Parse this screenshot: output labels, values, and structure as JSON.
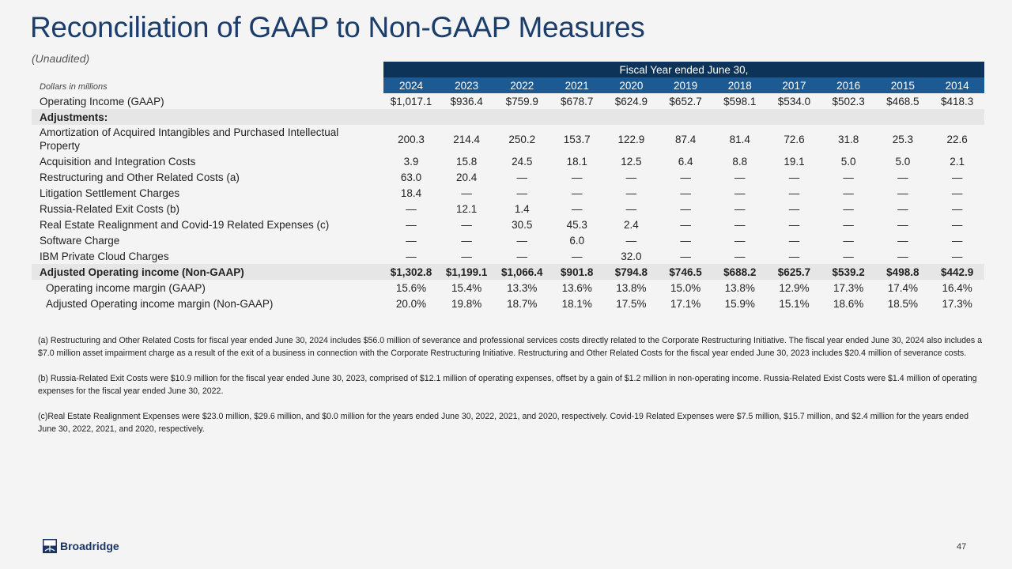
{
  "title": "Reconciliation of GAAP to Non-GAAP Measures",
  "subtitle": "(Unaudited)",
  "units_label": "Dollars in millions",
  "header_band": "Fiscal Year ended June 30,",
  "years": [
    "2024",
    "2023",
    "2022",
    "2021",
    "2020",
    "2019",
    "2018",
    "2017",
    "2016",
    "2015",
    "2014"
  ],
  "rows": [
    {
      "label": "Operating Income (GAAP)",
      "style": "",
      "values": [
        "$1,017.1",
        "$936.4",
        "$759.9",
        "$678.7",
        "$624.9",
        "$652.7",
        "$598.1",
        "$534.0",
        "$502.3",
        "$468.5",
        "$418.3"
      ]
    },
    {
      "label": "Adjustments:",
      "style": "grey bold",
      "values": []
    },
    {
      "label": "Amortization of Acquired Intangibles and Purchased Intellectual Property",
      "style": "tall",
      "values": [
        "200.3",
        "214.4",
        "250.2",
        "153.7",
        "122.9",
        "87.4",
        "81.4",
        "72.6",
        "31.8",
        "25.3",
        "22.6"
      ]
    },
    {
      "label": "Acquisition and Integration Costs",
      "style": "",
      "values": [
        "3.9",
        "15.8",
        "24.5",
        "18.1",
        "12.5",
        "6.4",
        "8.8",
        "19.1",
        "5.0",
        "5.0",
        "2.1"
      ]
    },
    {
      "label": "Restructuring and Other Related Costs (a)",
      "style": "",
      "values": [
        "63.0",
        "20.4",
        "—",
        "—",
        "—",
        "—",
        "—",
        "—",
        "—",
        "—",
        "—"
      ]
    },
    {
      "label": "Litigation Settlement Charges",
      "style": "",
      "values": [
        "18.4",
        "—",
        "—",
        "—",
        "—",
        "—",
        "—",
        "—",
        "—",
        "—",
        "—"
      ]
    },
    {
      "label": "Russia-Related Exit Costs (b)",
      "style": "",
      "values": [
        "—",
        "12.1",
        "1.4",
        "—",
        "—",
        "—",
        "—",
        "—",
        "—",
        "—",
        "—"
      ]
    },
    {
      "label": "Real Estate Realignment and Covid-19 Related Expenses (c)",
      "style": "",
      "values": [
        "—",
        "—",
        "30.5",
        "45.3",
        "2.4",
        "—",
        "—",
        "—",
        "—",
        "—",
        "—"
      ]
    },
    {
      "label": "Software Charge",
      "style": "",
      "values": [
        "—",
        "—",
        "—",
        "6.0",
        "—",
        "—",
        "—",
        "—",
        "—",
        "—",
        "—"
      ]
    },
    {
      "label": "IBM Private Cloud Charges",
      "style": "",
      "values": [
        "—",
        "—",
        "—",
        "—",
        "32.0",
        "—",
        "—",
        "—",
        "—",
        "—",
        "—"
      ]
    },
    {
      "label": "Adjusted Operating income (Non-GAAP)",
      "style": "grey bold",
      "values": [
        "$1,302.8",
        "$1,199.1",
        "$1,066.4",
        "$901.8",
        "$794.8",
        "$746.5",
        "$688.2",
        "$625.7",
        "$539.2",
        "$498.8",
        "$442.9"
      ]
    },
    {
      "label": "Operating income margin (GAAP)",
      "style": "indent",
      "values": [
        "15.6%",
        "15.4%",
        "13.3%",
        "13.6%",
        "13.8%",
        "15.0%",
        "13.8%",
        "12.9%",
        "17.3%",
        "17.4%",
        "16.4%"
      ]
    },
    {
      "label": "Adjusted Operating income margin (Non-GAAP)",
      "style": "indent",
      "values": [
        "20.0%",
        "19.8%",
        "18.7%",
        "18.1%",
        "17.5%",
        "17.1%",
        "15.9%",
        "15.1%",
        "18.6%",
        "18.5%",
        "17.3%"
      ]
    }
  ],
  "footnotes": [
    "(a) Restructuring and Other Related Costs for fiscal year ended June 30, 2024 includes $56.0 million of severance and professional services costs directly related to the Corporate Restructuring Initiative. The fiscal year ended June 30, 2024 also includes a $7.0 million asset impairment charge as a result of the exit of a business in connection with the Corporate Restructuring Initiative. Restructuring and Other Related Costs for the fiscal year ended June 30, 2023 includes $20.4 million of severance costs.",
    "(b) Russia-Related Exit Costs were $10.9 million for the fiscal year ended June 30, 2023, comprised of $12.1 million of operating expenses, offset by a gain of $1.2 million in non-operating income. Russia-Related Exist Costs were $1.4 million of operating expenses for the fiscal year ended June 30, 2022.",
    "(c)Real Estate Realignment Expenses were $23.0 million, $29.6 million, and $0.0 million  for the years ended June 30, 2022, 2021, and 2020, respectively. Covid-19 Related Expenses were $7.5 million, $15.7 million, and $2.4 million for the years ended June 30, 2022, 2021, and 2020, respectively."
  ],
  "logo_text": "Broadridge",
  "page_number": "47"
}
